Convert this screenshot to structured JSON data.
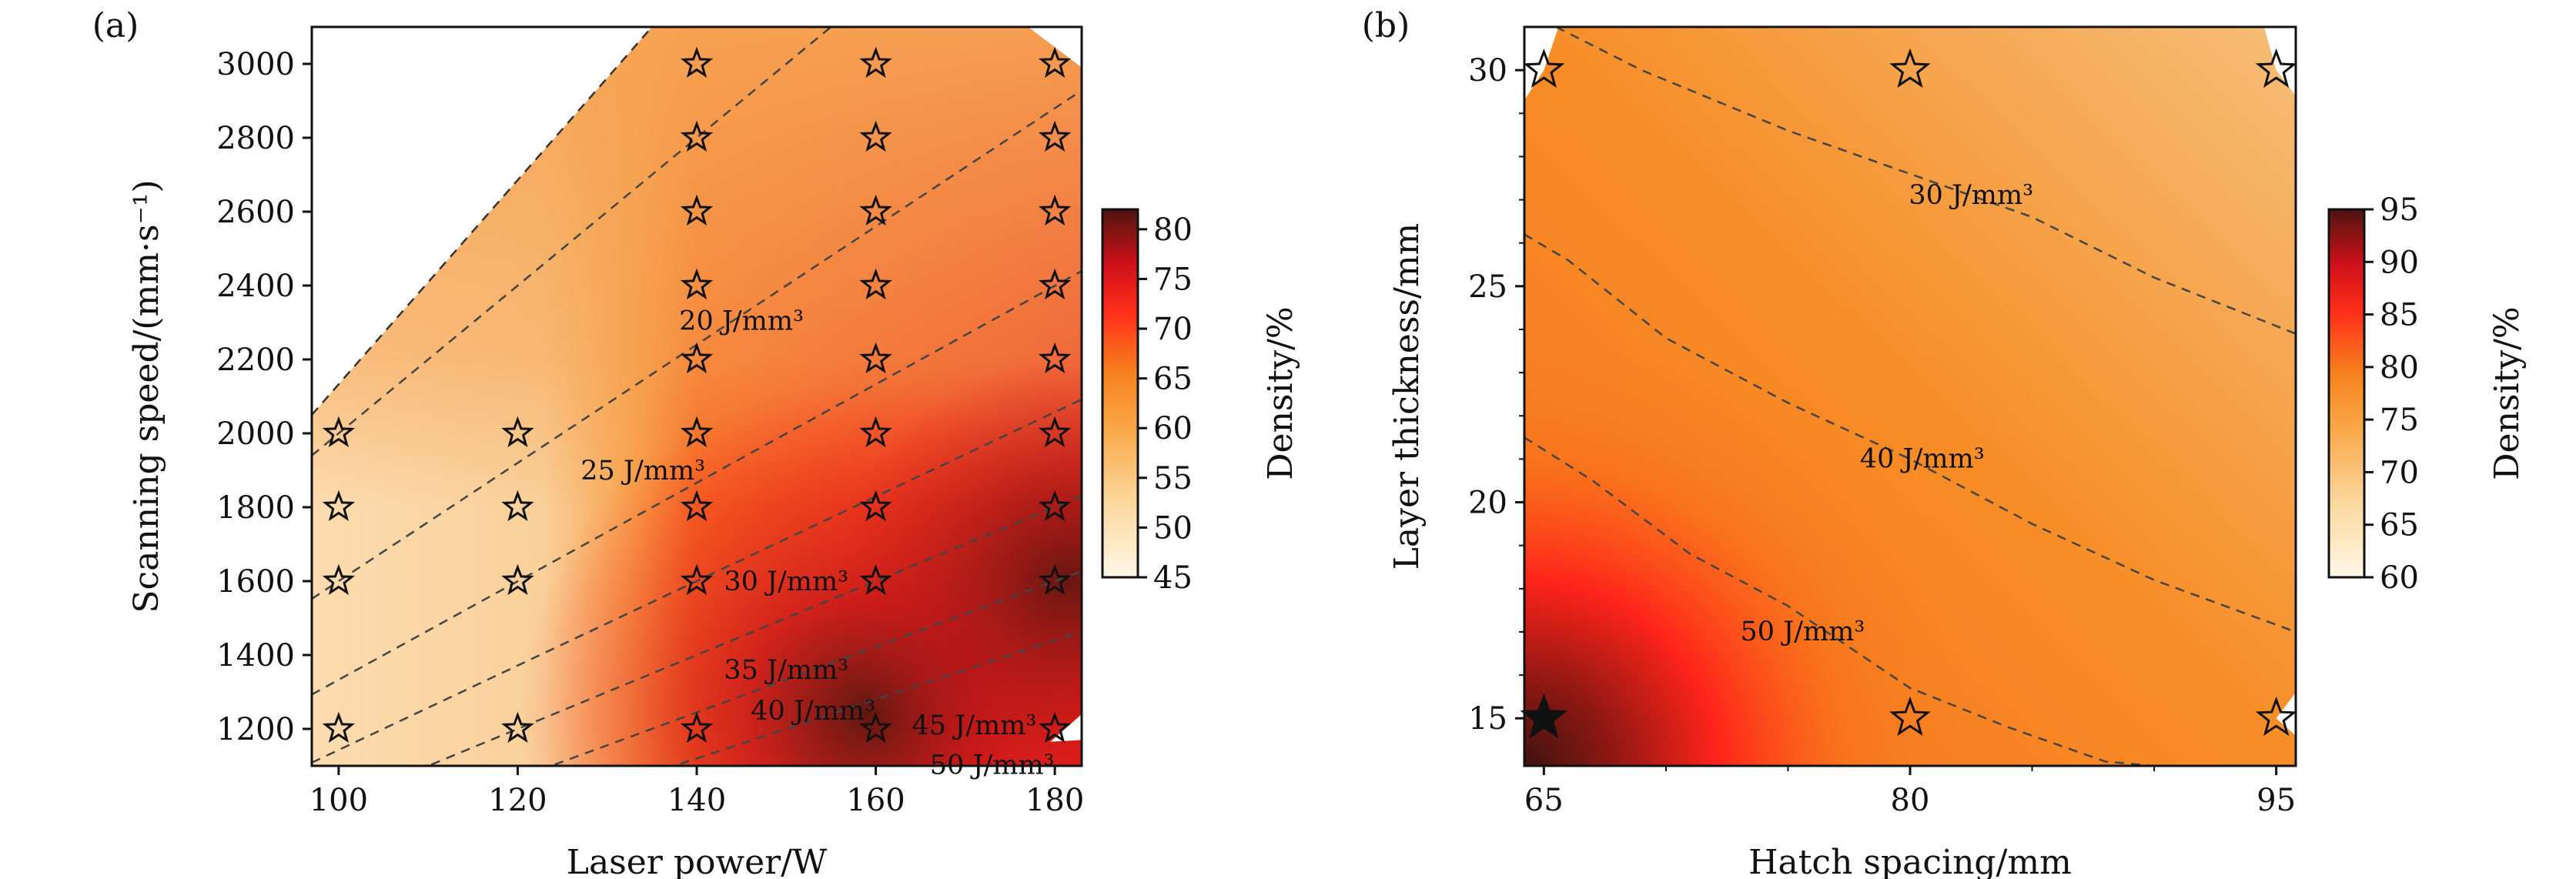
{
  "chart_data": [
    {
      "panel": "(a)",
      "type": "heatmap",
      "xlabel": "Laser power/W",
      "ylabel": "Scanning speed/(mm·s⁻¹)",
      "xlim": [
        97,
        183
      ],
      "ylim": [
        1100,
        3100
      ],
      "xticks": [
        100,
        120,
        140,
        160,
        180
      ],
      "yticks": [
        1200,
        1400,
        1600,
        1800,
        2000,
        2200,
        2400,
        2600,
        2800,
        3000
      ],
      "samples": [
        {
          "x": 100,
          "y": 1200
        },
        {
          "x": 100,
          "y": 1600
        },
        {
          "x": 100,
          "y": 1800
        },
        {
          "x": 100,
          "y": 2000
        },
        {
          "x": 120,
          "y": 1200
        },
        {
          "x": 120,
          "y": 1600
        },
        {
          "x": 120,
          "y": 1800
        },
        {
          "x": 120,
          "y": 2000
        },
        {
          "x": 140,
          "y": 1200
        },
        {
          "x": 140,
          "y": 1600
        },
        {
          "x": 140,
          "y": 1800
        },
        {
          "x": 140,
          "y": 2000
        },
        {
          "x": 140,
          "y": 2200
        },
        {
          "x": 140,
          "y": 2400
        },
        {
          "x": 140,
          "y": 2600
        },
        {
          "x": 140,
          "y": 2800
        },
        {
          "x": 140,
          "y": 3000
        },
        {
          "x": 160,
          "y": 1200
        },
        {
          "x": 160,
          "y": 1600
        },
        {
          "x": 160,
          "y": 1800
        },
        {
          "x": 160,
          "y": 2000
        },
        {
          "x": 160,
          "y": 2200
        },
        {
          "x": 160,
          "y": 2400
        },
        {
          "x": 160,
          "y": 2600
        },
        {
          "x": 160,
          "y": 2800
        },
        {
          "x": 160,
          "y": 3000
        },
        {
          "x": 180,
          "y": 1200
        },
        {
          "x": 180,
          "y": 1600
        },
        {
          "x": 180,
          "y": 1800
        },
        {
          "x": 180,
          "y": 2000
        },
        {
          "x": 180,
          "y": 2200
        },
        {
          "x": 180,
          "y": 2400
        },
        {
          "x": 180,
          "y": 2600
        },
        {
          "x": 180,
          "y": 2800
        },
        {
          "x": 180,
          "y": 3000
        }
      ],
      "contours": [
        {
          "label": "20 J/mm³",
          "slope": 20,
          "label_at": [
            145,
            2280
          ]
        },
        {
          "label": "25 J/mm³",
          "slope": 16,
          "label_at": [
            134,
            1875
          ]
        },
        {
          "label": "30 J/mm³",
          "slope": 13.33,
          "label_at": [
            150,
            1575
          ]
        },
        {
          "label": "35 J/mm³",
          "slope": 11.43,
          "label_at": [
            150,
            1335
          ]
        },
        {
          "label": "40 J/mm³",
          "slope": 10,
          "label_at": [
            153,
            1225
          ]
        },
        {
          "label": "45 J/mm³",
          "slope": 8.89,
          "label_at": [
            171,
            1185
          ]
        },
        {
          "label": "50 J/mm³",
          "slope": 8,
          "label_at": [
            173,
            1078
          ]
        }
      ],
      "colorbar": {
        "label": "Density/%",
        "min": 45,
        "max": 82,
        "ticks": [
          45,
          50,
          55,
          60,
          65,
          70,
          75,
          80
        ]
      }
    },
    {
      "panel": "(b)",
      "type": "heatmap",
      "xlabel": "Hatch spacing/mm",
      "ylabel": "Layer thickness/mm",
      "xlim": [
        64.2,
        95.8
      ],
      "ylim": [
        13.9,
        31
      ],
      "xticks": [
        65,
        80,
        95
      ],
      "yticks": [
        15,
        20,
        25,
        30
      ],
      "samples": [
        {
          "x": 65,
          "y": 15,
          "highlight": true
        },
        {
          "x": 80,
          "y": 15
        },
        {
          "x": 95,
          "y": 15
        },
        {
          "x": 65,
          "y": 30
        },
        {
          "x": 80,
          "y": 30
        },
        {
          "x": 95,
          "y": 30
        }
      ],
      "contours": [
        {
          "label": "30 J/mm³",
          "level": 30,
          "label_at": [
            82.5,
            26.9
          ]
        },
        {
          "label": "40 J/mm³",
          "level": 40,
          "label_at": [
            80.5,
            20.8
          ]
        },
        {
          "label": "50 J/mm³",
          "level": 50,
          "label_at": [
            75.6,
            16.8
          ]
        }
      ],
      "colorbar": {
        "label": "Density/%",
        "min": 60,
        "max": 95,
        "ticks": [
          60,
          65,
          70,
          75,
          80,
          85,
          90,
          95
        ]
      }
    }
  ]
}
